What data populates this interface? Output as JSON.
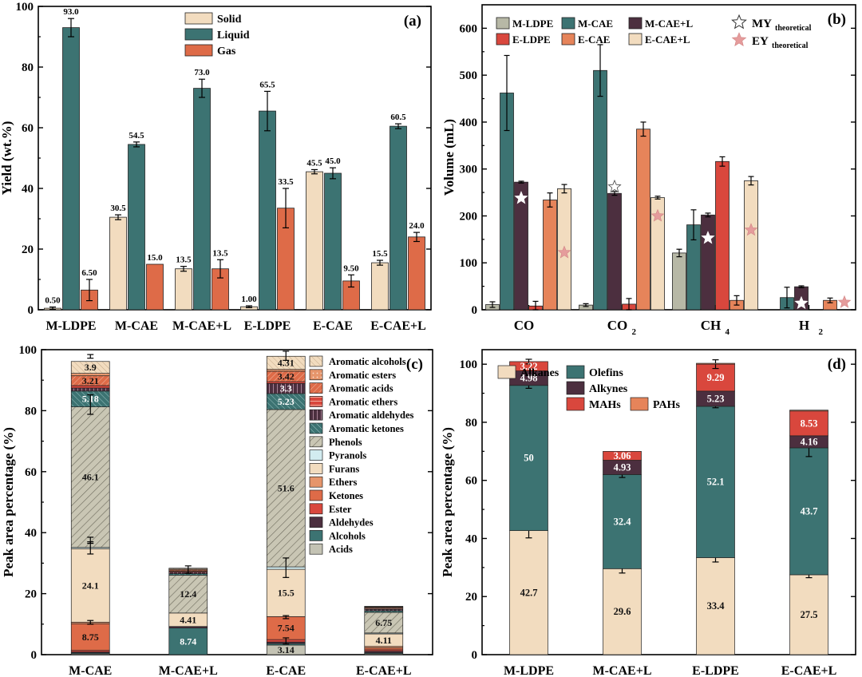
{
  "colors": {
    "solid": "#f2dcbf",
    "liquid": "#3c7372",
    "gas": "#de6b48",
    "m_ldpe": "#b7b8a6",
    "m_cae": "#3c7372",
    "m_cae_l": "#4c2f3f",
    "e_ldpe": "#d9473d",
    "e_cae": "#e6845a",
    "e_cae_l": "#f2dcbf",
    "ey_star": "#e59c9c",
    "acids": "#c4c3b4",
    "alcohols": "#3c7372",
    "aldehydes": "#4c2f3f",
    "ester": "#d9473d",
    "ketones": "#de6b48",
    "ethers": "#e6956b",
    "furans": "#f2dcbf",
    "pyranols": "#d2ecf0",
    "phenols": "#c9c6b4",
    "arom_ketones": "#3c7372",
    "arom_aldehydes": "#4c2f3f",
    "arom_ethers": "#d9473d",
    "arom_acids": "#de6b48",
    "arom_esters": "#e6956b",
    "arom_alcohols": "#f2dcbf",
    "alkanes": "#f2dcbf",
    "olefins": "#3c7372",
    "alkynes": "#4c2f3f",
    "mahs": "#d9473d",
    "pahs": "#e6845a"
  },
  "chart_data": [
    {
      "id": "a",
      "type": "bar",
      "panel_label": "(a)",
      "ylabel": "Yield (wt.%)",
      "xlabel": "",
      "ylim": [
        0,
        100
      ],
      "yticks": [
        "0",
        "20",
        "40",
        "60",
        "80",
        "100"
      ],
      "categories": [
        "M-LDPE",
        "M-CAE",
        "M-CAE+L",
        "E-LDPE",
        "E-CAE",
        "E-CAE+L"
      ],
      "legend_position": "top-right",
      "series": [
        {
          "name": "Solid",
          "color_key": "solid",
          "values": [
            0.5,
            30.5,
            13.5,
            1.0,
            45.5,
            15.5
          ],
          "errors": [
            0.4,
            0.8,
            0.8,
            0.3,
            0.7,
            0.8
          ],
          "labels": [
            "0.50",
            "30.5",
            "13.5",
            "1.00",
            "45.5",
            "15.5"
          ]
        },
        {
          "name": "Liquid",
          "color_key": "liquid",
          "values": [
            93.0,
            54.5,
            73.0,
            65.5,
            45.0,
            60.5
          ],
          "errors": [
            3.0,
            0.8,
            3.0,
            6.5,
            1.8,
            0.8
          ],
          "labels": [
            "93.0",
            "54.5",
            "73.0",
            "65.5",
            "45.0",
            "60.5"
          ]
        },
        {
          "name": "Gas",
          "color_key": "gas",
          "values": [
            6.5,
            15.0,
            13.5,
            33.5,
            9.5,
            24.0
          ],
          "errors": [
            3.5,
            0,
            3.0,
            6.5,
            2.0,
            1.5
          ],
          "labels": [
            "6.50",
            "15.0",
            "13.5",
            "33.5",
            "9.50",
            "24.0"
          ]
        }
      ]
    },
    {
      "id": "b",
      "type": "bar",
      "panel_label": "(b)",
      "ylabel": "Volume (mL)",
      "xlabel": "",
      "ylim": [
        0,
        650
      ],
      "yticks": [
        "0",
        "100",
        "200",
        "300",
        "400",
        "500",
        "600"
      ],
      "categories": [
        "CO",
        "CO",
        "CH",
        "H"
      ],
      "category_subscripts": [
        "",
        "2",
        "4",
        "2"
      ],
      "legend_position": "top",
      "series": [
        {
          "name": "M-LDPE",
          "color_key": "m_ldpe",
          "values": [
            11,
            10,
            121,
            0
          ],
          "errors": [
            6,
            3,
            8,
            0
          ]
        },
        {
          "name": "M-CAE",
          "color_key": "m_cae",
          "values": [
            462,
            510,
            181,
            26
          ],
          "errors": [
            80,
            55,
            32,
            22
          ]
        },
        {
          "name": "M-CAE+L",
          "color_key": "m_cae_l",
          "values": [
            272,
            248,
            202,
            49
          ],
          "errors": [
            2,
            4,
            4,
            2
          ]
        },
        {
          "name": "E-LDPE",
          "color_key": "e_ldpe",
          "values": [
            8,
            12,
            316,
            0
          ],
          "errors": [
            10,
            12,
            10,
            0
          ]
        },
        {
          "name": "E-CAE",
          "color_key": "e_cae",
          "values": [
            234,
            385,
            20,
            20
          ],
          "errors": [
            15,
            15,
            10,
            5
          ]
        },
        {
          "name": "E-CAE+L",
          "color_key": "e_cae_l",
          "values": [
            258,
            239,
            275,
            0
          ],
          "errors": [
            9,
            3,
            9,
            0
          ]
        }
      ],
      "markers": [
        {
          "name": "MY",
          "subscript": "theoretical",
          "style": "hollow-star",
          "values": [
            238,
            262,
            153,
            14
          ]
        },
        {
          "name": "EY",
          "subscript": "theoretical",
          "style": "pink-star",
          "values": [
            122,
            200,
            170,
            16
          ]
        }
      ]
    },
    {
      "id": "c",
      "type": "stacked-bar",
      "panel_label": "(c)",
      "ylabel": "Peak area percentage (%)",
      "xlabel": "",
      "ylim": [
        0,
        100
      ],
      "yticks": [
        "0",
        "20",
        "40",
        "60",
        "80",
        "100"
      ],
      "categories": [
        "M-CAE",
        "M-CAE+L",
        "E-CAE",
        "E-CAE+L"
      ],
      "legend_position": "top-right",
      "series": [
        {
          "name": "Acids",
          "color_key": "acids",
          "values": [
            0.3,
            0,
            3.14,
            0.3
          ],
          "labels": [
            "",
            "",
            "3.14",
            ""
          ]
        },
        {
          "name": "Alcohols",
          "color_key": "alcohols",
          "values": [
            0.3,
            8.74,
            0.5,
            0.3
          ],
          "labels": [
            "",
            "8.74",
            "",
            ""
          ]
        },
        {
          "name": "Aldehydes",
          "color_key": "aldehydes",
          "values": [
            0.3,
            0.5,
            0.5,
            0.5
          ],
          "labels": [
            "",
            "",
            "",
            ""
          ]
        },
        {
          "name": "Ester",
          "color_key": "ester",
          "values": [
            0.5,
            0,
            0.8,
            0.5
          ],
          "labels": [
            "",
            "",
            "",
            ""
          ]
        },
        {
          "name": "Ketones",
          "color_key": "ketones",
          "values": [
            8.75,
            0,
            7.54,
            0.6
          ],
          "labels": [
            "8.75",
            "",
            "7.54",
            ""
          ]
        },
        {
          "name": "Ethers",
          "color_key": "ethers",
          "values": [
            0.5,
            0,
            0,
            0.5
          ],
          "labels": [
            "",
            "",
            "",
            ""
          ]
        },
        {
          "name": "Furans",
          "color_key": "furans",
          "values": [
            24.1,
            4.41,
            15.5,
            4.11
          ],
          "labels": [
            "24.1",
            "4.41",
            "15.5",
            "4.11"
          ]
        },
        {
          "name": "Pyranols",
          "color_key": "pyranols",
          "values": [
            0.4,
            0,
            0.8,
            0.3
          ],
          "labels": [
            "",
            "",
            "",
            ""
          ]
        },
        {
          "name": "Phenols",
          "color_key": "phenols",
          "values": [
            46.1,
            12.4,
            51.6,
            6.75
          ],
          "labels": [
            "46.1",
            "12.4",
            "51.6",
            "6.75"
          ]
        },
        {
          "name": "Aromatic ketones",
          "color_key": "arom_ketones",
          "values": [
            5.18,
            0.5,
            5.23,
            0.5
          ],
          "labels": [
            "5.18",
            "",
            "5.23",
            ""
          ]
        },
        {
          "name": "Aromatic aldehydes",
          "color_key": "arom_aldehydes",
          "values": [
            1.0,
            0.5,
            3.3,
            0.5
          ],
          "labels": [
            "",
            "",
            "3.3",
            ""
          ]
        },
        {
          "name": "Aromatic ethers",
          "color_key": "arom_ethers",
          "values": [
            0.8,
            0.3,
            0.6,
            0.3
          ],
          "labels": [
            "",
            "",
            "",
            ""
          ]
        },
        {
          "name": "Aromatic acids",
          "color_key": "arom_acids",
          "values": [
            3.21,
            0.4,
            3.42,
            0.3
          ],
          "labels": [
            "3.21",
            "",
            "3.42",
            ""
          ]
        },
        {
          "name": "Aromatic esters",
          "color_key": "arom_esters",
          "values": [
            0.8,
            0.3,
            0.6,
            0.2
          ],
          "labels": [
            "",
            "",
            "",
            ""
          ]
        },
        {
          "name": "Aromatic alcohols",
          "color_key": "arom_alcohols",
          "values": [
            3.9,
            0.3,
            4.31,
            0.2
          ],
          "labels": [
            "3.9",
            "",
            "4.31",
            ""
          ]
        }
      ]
    },
    {
      "id": "d",
      "type": "stacked-bar",
      "panel_label": "(d)",
      "ylabel": "Peak area percentage (%)",
      "xlabel": "",
      "ylim": [
        0,
        105
      ],
      "yticks": [
        "0",
        "20",
        "40",
        "60",
        "80",
        "100"
      ],
      "categories": [
        "M-LDPE",
        "M-CAE+L",
        "E-LDPE",
        "E-CAE+L"
      ],
      "legend_position": "top-left",
      "series": [
        {
          "name": "Alkanes",
          "color_key": "alkanes",
          "values": [
            42.7,
            29.6,
            33.4,
            27.5
          ],
          "errors": [
            2.5,
            1.5,
            1.5,
            1.0
          ],
          "labels": [
            "42.7",
            "29.6",
            "33.4",
            "27.5"
          ]
        },
        {
          "name": "Olefins",
          "color_key": "olefins",
          "values": [
            50,
            32.4,
            52.1,
            43.7
          ],
          "errors": [
            1.0,
            1.0,
            0.5,
            3.0
          ],
          "labels": [
            "50",
            "32.4",
            "52.1",
            "43.7"
          ]
        },
        {
          "name": "Alkynes",
          "color_key": "alkynes",
          "values": [
            4.98,
            4.93,
            5.23,
            4.16
          ],
          "errors": [
            0,
            0,
            0,
            0
          ],
          "labels": [
            "4.98",
            "4.93",
            "5.23",
            "4.16"
          ]
        },
        {
          "name": "MAHs",
          "color_key": "mahs",
          "values": [
            3.22,
            3.06,
            9.29,
            8.53
          ],
          "errors": [
            0.8,
            0,
            1.5,
            0
          ],
          "labels": [
            "3.22",
            "3.06",
            "9.29",
            "8.53"
          ]
        },
        {
          "name": "PAHs",
          "color_key": "pahs",
          "values": [
            0,
            0,
            0.3,
            0.3
          ],
          "errors": [
            0,
            0,
            0,
            0
          ],
          "labels": [
            "",
            "",
            "",
            ""
          ]
        }
      ]
    }
  ]
}
